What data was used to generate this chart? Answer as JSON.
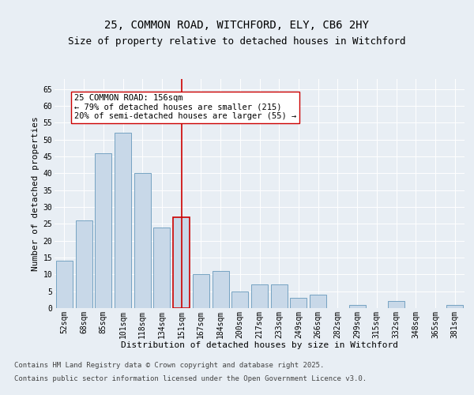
{
  "title1": "25, COMMON ROAD, WITCHFORD, ELY, CB6 2HY",
  "title2": "Size of property relative to detached houses in Witchford",
  "xlabel": "Distribution of detached houses by size in Witchford",
  "ylabel": "Number of detached properties",
  "categories": [
    "52sqm",
    "68sqm",
    "85sqm",
    "101sqm",
    "118sqm",
    "134sqm",
    "151sqm",
    "167sqm",
    "184sqm",
    "200sqm",
    "217sqm",
    "233sqm",
    "249sqm",
    "266sqm",
    "282sqm",
    "299sqm",
    "315sqm",
    "332sqm",
    "348sqm",
    "365sqm",
    "381sqm"
  ],
  "values": [
    14,
    26,
    46,
    52,
    40,
    24,
    27,
    10,
    11,
    5,
    7,
    7,
    3,
    4,
    0,
    1,
    0,
    2,
    0,
    0,
    1
  ],
  "highlight_index": 6,
  "bar_color": "#c8d8e8",
  "bar_edge_color": "#6699bb",
  "highlight_bar_edge_color": "#cc0000",
  "vline_color": "#cc0000",
  "annotation_text": "25 COMMON ROAD: 156sqm\n← 79% of detached houses are smaller (215)\n20% of semi-detached houses are larger (55) →",
  "annotation_box_color": "#ffffff",
  "annotation_box_edge": "#cc0000",
  "ylim": [
    0,
    68
  ],
  "yticks": [
    0,
    5,
    10,
    15,
    20,
    25,
    30,
    35,
    40,
    45,
    50,
    55,
    60,
    65
  ],
  "background_color": "#e8eef4",
  "footer1": "Contains HM Land Registry data © Crown copyright and database right 2025.",
  "footer2": "Contains public sector information licensed under the Open Government Licence v3.0.",
  "title1_fontsize": 10,
  "title2_fontsize": 9,
  "xlabel_fontsize": 8,
  "ylabel_fontsize": 8,
  "tick_fontsize": 7,
  "annotation_fontsize": 7.5,
  "footer_fontsize": 6.5
}
